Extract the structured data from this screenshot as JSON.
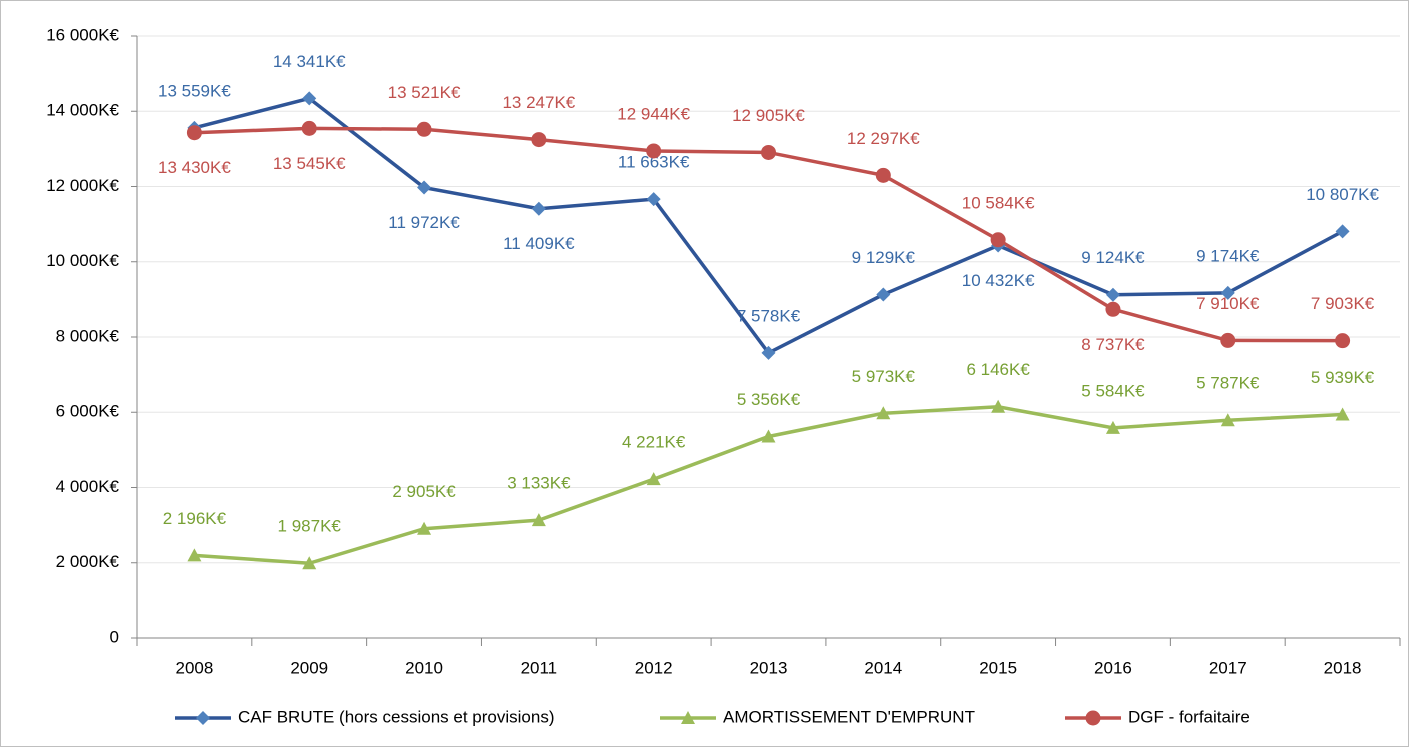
{
  "chart_data": {
    "type": "line",
    "categories": [
      "2008",
      "2009",
      "2010",
      "2011",
      "2012",
      "2013",
      "2014",
      "2015",
      "2016",
      "2017",
      "2018"
    ],
    "series": [
      {
        "name": "CAF BRUTE (hors cessions et provisions)",
        "color": "#2f5597",
        "marker": "diamond",
        "values": [
          13559,
          14341,
          11972,
          11409,
          11663,
          7578,
          9129,
          10432,
          9124,
          9174,
          10807
        ],
        "value_labels": [
          "13 559K€",
          "14 341K€",
          "11 972K€",
          "11 409K€",
          "11 663K€",
          "7 578K€",
          "9 129K€",
          "10 432K€",
          "9 124K€",
          "9 174K€",
          "10 807K€"
        ]
      },
      {
        "name": "AMORTISSEMENT D'EMPRUNT",
        "color": "#9bbb59",
        "marker": "triangle",
        "values": [
          2196,
          1987,
          2905,
          3133,
          4221,
          5356,
          5973,
          6146,
          5584,
          5787,
          5939
        ],
        "value_labels": [
          "2 196K€",
          "1 987K€",
          "2 905K€",
          "3 133K€",
          "4 221K€",
          "5 356K€",
          "5 973K€",
          "6 146K€",
          "5 584K€",
          "5 787K€",
          "5 939K€"
        ]
      },
      {
        "name": "DGF - forfaitaire",
        "color": "#c0504d",
        "marker": "circle",
        "values": [
          13430,
          13545,
          13521,
          13247,
          12944,
          12905,
          12297,
          10584,
          8737,
          7910,
          7903
        ],
        "value_labels": [
          "13 430K€",
          "13 545K€",
          "13 521K€",
          "13 247K€",
          "12 944K€",
          "12 905K€",
          "12 297K€",
          "10 584K€",
          "8 737K€",
          "7 910K€",
          "7 903K€"
        ]
      }
    ],
    "ylim": [
      0,
      16000
    ],
    "yticks": [
      0,
      {
        "value": 2000,
        "label": "2 000K€"
      },
      {
        "value": 4000,
        "label": "4 000K€"
      },
      {
        "value": 6000,
        "label": "6 000K€"
      },
      {
        "value": 8000,
        "label": "8 000K€"
      },
      {
        "value": 10000,
        "label": "10 000K€"
      },
      {
        "value": 12000,
        "label": "12 000K€"
      },
      {
        "value": 14000,
        "label": "14 000K€"
      },
      {
        "value": 16000,
        "label": "16 000K€"
      }
    ],
    "grid": true,
    "legend": "bottom"
  }
}
